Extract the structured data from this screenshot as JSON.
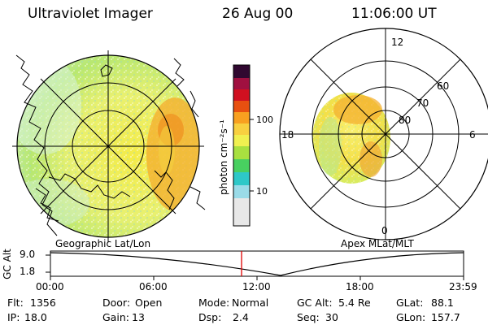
{
  "header": {
    "title": "Ultraviolet Imager",
    "date": "26 Aug 00",
    "time": "11:06:00 UT"
  },
  "geo_panel": {
    "caption": "Geographic Lat/Lon"
  },
  "apex_panel": {
    "caption": "Apex MLat/MLT",
    "mlt_labels": [
      "12",
      "18",
      "6",
      "0"
    ],
    "lat_labels": [
      "60",
      "70",
      "80"
    ]
  },
  "colorbar": {
    "unit_label": "photon cm⁻²s⁻¹",
    "ticks": [
      "100",
      "10"
    ],
    "scale": "log",
    "colors": [
      "#e8e8e8",
      "#9adbe8",
      "#2ec8c8",
      "#48d060",
      "#a8e040",
      "#f0f050",
      "#f8d040",
      "#f8a020",
      "#e85010",
      "#d01020",
      "#a01040",
      "#300830"
    ]
  },
  "altitude_track": {
    "axis_label": "GC Alt",
    "y_ticks": [
      "9.0",
      "1.8"
    ],
    "time_ticks": [
      "00:00",
      "06:00",
      "12:00",
      "18:00",
      "23:59"
    ],
    "marker_time": "11:06",
    "marker_color": "#e00000"
  },
  "status": {
    "row1": [
      {
        "key": "Flt:",
        "value": "1356"
      },
      {
        "key": "Door:",
        "value": "Open"
      },
      {
        "key": "Mode:",
        "value": "Normal"
      },
      {
        "key": "GC Alt:",
        "value": "5.4 Re"
      },
      {
        "key": "GLat:",
        "value": "88.1"
      }
    ],
    "row2": [
      {
        "key": "IP:",
        "value": "18.0"
      },
      {
        "key": "Gain:",
        "value": "13"
      },
      {
        "key": "Dsp:",
        "value": "2.4"
      },
      {
        "key": "Seq:",
        "value": "30"
      },
      {
        "key": "GLon:",
        "value": "157.7"
      }
    ]
  }
}
